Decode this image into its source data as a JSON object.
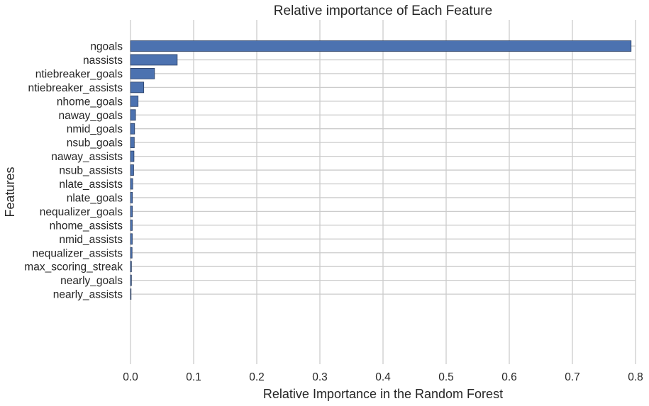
{
  "chart_data": {
    "type": "bar",
    "orientation": "horizontal",
    "title": "Relative importance of Each Feature",
    "xlabel": "Relative Importance in the Random Forest",
    "ylabel": "Features",
    "xlim": [
      0.0,
      0.8
    ],
    "xticks": [
      "0.0",
      "0.1",
      "0.2",
      "0.3",
      "0.4",
      "0.5",
      "0.6",
      "0.7",
      "0.8"
    ],
    "grid": true,
    "color": "#4c72b0",
    "categories": [
      "ngoals",
      "nassists",
      "ntiebreaker_goals",
      "ntiebreaker_assists",
      "nhome_goals",
      "naway_goals",
      "nmid_goals",
      "nsub_goals",
      "naway_assists",
      "nsub_assists",
      "nlate_assists",
      "nlate_goals",
      "nequalizer_goals",
      "nhome_assists",
      "nmid_assists",
      "nequalizer_assists",
      "max_scoring_streak",
      "nearly_goals",
      "nearly_assists"
    ],
    "values": [
      0.793,
      0.074,
      0.038,
      0.021,
      0.012,
      0.008,
      0.0065,
      0.006,
      0.0055,
      0.005,
      0.0035,
      0.003,
      0.003,
      0.0028,
      0.0028,
      0.0025,
      0.0015,
      0.0015,
      0.0005
    ]
  }
}
